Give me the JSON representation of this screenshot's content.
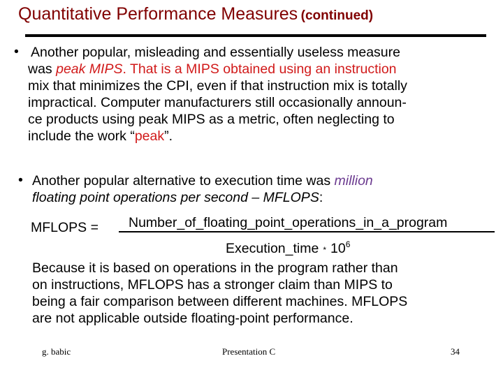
{
  "title": {
    "main": "Quantitative Performance Measures",
    "suffix": "(continued)"
  },
  "bullet_glyph": "•",
  "paragraph1": {
    "line1": "Another popular, misleading and essentially useless measure",
    "line2_pre": "was ",
    "line2_em": "peak MIPS",
    "line2_post": ". That is a MIPS obtained using an instruction",
    "line3": "mix that minimizes the CPI, even if that instruction mix is totally",
    "line4": "impractical. Computer manufacturers still occasionally announ-",
    "line5": "ce products using peak MIPS as a metric, often neglecting to",
    "line6_pre": "include the work “",
    "line6_em": "peak",
    "line6_post": "”."
  },
  "paragraph2": {
    "line1_pre": "Another popular alternative to execution time was ",
    "line1_em": "million",
    "line2_em": "floating point operations per second – MFLOPS",
    "line2_post": ":"
  },
  "formula": {
    "lhs": "MFLOPS =",
    "numerator": "Number_of_floating_point_operations_in_a_program",
    "denominator": "Execution_time",
    "times": "*",
    "power_base": "10",
    "power_exp": "6"
  },
  "paragraph3": [
    "Because it is based on operations in the program rather than",
    "on instructions, MFLOPS has a stronger claim than MIPS to",
    "being a fair comparison between different machines. MFLOPS",
    "are not applicable outside floating-point performance."
  ],
  "footer": {
    "author": "g. babic",
    "presentation": "Presentation C",
    "page": "34"
  }
}
